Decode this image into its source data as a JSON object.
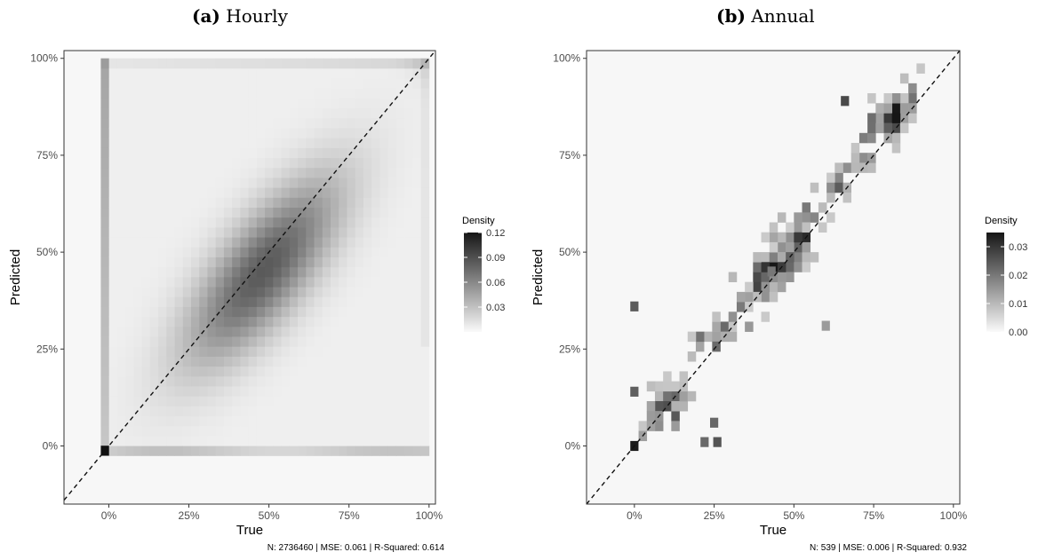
{
  "chart_data": [
    {
      "type": "heatmap",
      "panel_tag": "(a)",
      "title": "Hourly",
      "xlabel": "True",
      "ylabel": "Predicted",
      "xlim": [
        -0.14,
        1.02
      ],
      "ylim": [
        -0.15,
        1.02
      ],
      "x_ticks": [
        "0%",
        "25%",
        "50%",
        "75%",
        "100%"
      ],
      "y_ticks": [
        "0%",
        "25%",
        "50%",
        "75%",
        "100%"
      ],
      "reference_line": "dashed y = x",
      "legend": {
        "title": "Density",
        "placement": "right",
        "labels": [
          "0.12",
          "0.09",
          "0.06",
          "0.03"
        ],
        "min": 0,
        "max": 0.12
      },
      "caption": "N: 2736460 | MSE:  0.061 | R-Squared: 0.614",
      "bins": 40,
      "description_of_density": "broad smooth blob centered near (0.45, 0.45) along the diagonal; strong spikes at (0,0) and (1,1); vertical band at true=0 and horizontal band at predicted=0"
    },
    {
      "type": "heatmap",
      "panel_tag": "(b)",
      "title": "Annual",
      "xlabel": "True",
      "ylabel": "Predicted",
      "xlim": [
        -0.15,
        1.02
      ],
      "ylim": [
        -0.15,
        1.02
      ],
      "x_ticks": [
        "0%",
        "25%",
        "50%",
        "75%",
        "100%"
      ],
      "y_ticks": [
        "0%",
        "25%",
        "50%",
        "75%",
        "100%"
      ],
      "reference_line": "dashed y = x",
      "legend": {
        "title": "Density",
        "placement": "right",
        "labels": [
          "0.03",
          "0.02",
          "0.01",
          "0.00"
        ],
        "min": 0,
        "max": 0.035
      },
      "caption": "N: 539 | MSE:  0.006 | R-Squared: 0.932",
      "bins": 40,
      "description_of_density": "sparse scattered cells concentrated along the diagonal in clusters near 0-20%, 30-60% and 70-90%"
    }
  ]
}
